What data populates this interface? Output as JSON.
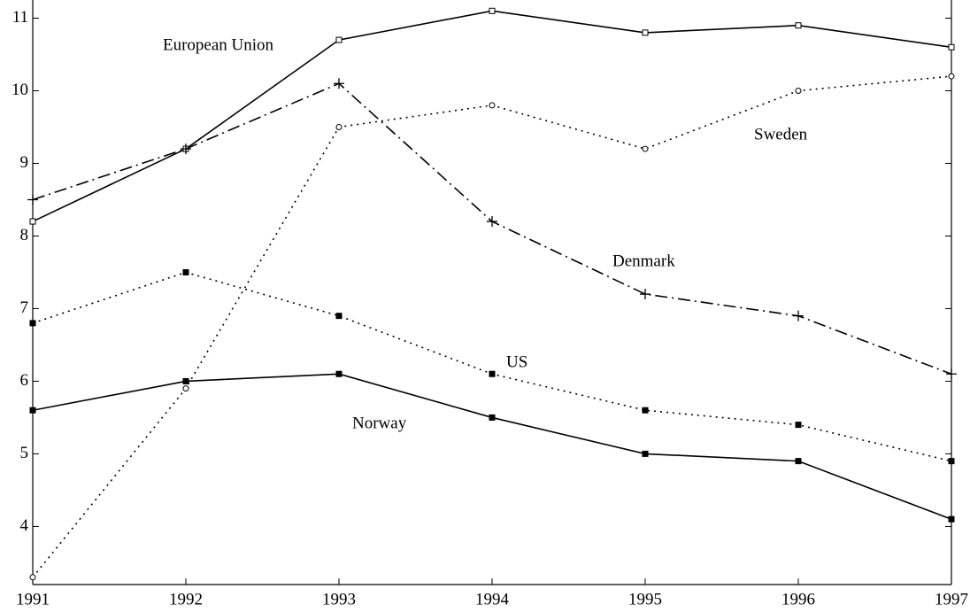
{
  "chart_data": {
    "type": "line",
    "x": [
      1991,
      1992,
      1993,
      1994,
      1995,
      1996,
      1997
    ],
    "xlim": [
      1991,
      1997
    ],
    "xticks": [
      1991,
      1992,
      1993,
      1994,
      1995,
      1996,
      1997
    ],
    "ylim": [
      3.2,
      11.25
    ],
    "yticks": [
      4,
      5,
      6,
      7,
      8,
      9,
      10,
      11
    ],
    "series": [
      {
        "name": "European Union",
        "color": "#000000",
        "style": "solid",
        "marker": "open-square",
        "values": [
          8.2,
          9.2,
          10.7,
          11.1,
          10.8,
          10.9,
          10.6
        ]
      },
      {
        "name": "Sweden",
        "color": "#000000",
        "style": "dotted",
        "marker": "open-circle",
        "values": [
          3.3,
          5.9,
          9.5,
          9.8,
          9.2,
          10.0,
          10.2
        ]
      },
      {
        "name": "Denmark",
        "color": "#000000",
        "style": "dashdot",
        "marker": "plus",
        "values": [
          8.5,
          9.2,
          10.1,
          8.2,
          7.2,
          6.9,
          6.1
        ]
      },
      {
        "name": "US",
        "color": "#000000",
        "style": "dotted",
        "marker": "filled-square",
        "values": [
          6.8,
          7.5,
          6.9,
          6.1,
          5.6,
          5.4,
          4.9
        ]
      },
      {
        "name": "Norway",
        "color": "#000000",
        "style": "solid",
        "marker": "filled-square",
        "values": [
          5.6,
          6.0,
          6.1,
          5.5,
          5.0,
          4.9,
          4.1
        ]
      }
    ]
  }
}
